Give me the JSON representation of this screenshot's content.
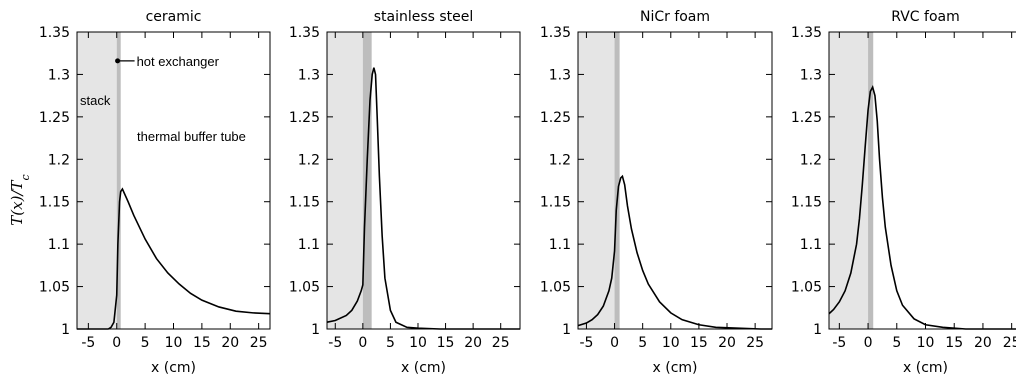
{
  "figure": {
    "ylabel": "T(x)/T",
    "ylabel_sub": "c"
  },
  "chart_data": [
    {
      "type": "line",
      "title": "ceramic",
      "xlabel": "x (cm)",
      "xlim": [
        -7,
        27
      ],
      "ylim": [
        1,
        1.35
      ],
      "xticks": [
        -5,
        0,
        5,
        10,
        15,
        20,
        25
      ],
      "yticks": [
        1,
        1.05,
        1.1,
        1.15,
        1.2,
        1.25,
        1.3,
        1.35
      ],
      "ytick_labels": [
        "1",
        "1.05",
        "1.1",
        "1.15",
        "1.2",
        "1.25",
        "1.3",
        "1.35"
      ],
      "regions": [
        {
          "name": "stack",
          "x": [
            -7,
            0
          ],
          "color": "#e5e5e5"
        },
        {
          "name": "hot exchanger",
          "x": [
            0,
            0.7
          ],
          "color": "#bdbdbd"
        }
      ],
      "annotations": {
        "stack": "stack",
        "hot_exchanger": "hot exchanger",
        "tube": "thermal buffer tube"
      },
      "series": [
        {
          "x": [
            -7,
            -3,
            -1.5,
            -1,
            -0.5,
            0,
            0.2,
            0.5,
            0.7,
            1,
            2,
            3,
            5,
            7,
            9,
            11,
            13,
            15,
            18,
            21,
            24,
            27
          ],
          "y": [
            1.0,
            1.0,
            1.0,
            1.002,
            1.008,
            1.04,
            1.1,
            1.15,
            1.162,
            1.165,
            1.15,
            1.134,
            1.106,
            1.083,
            1.066,
            1.053,
            1.042,
            1.034,
            1.026,
            1.021,
            1.019,
            1.018
          ]
        }
      ]
    },
    {
      "type": "line",
      "title": "stainless steel",
      "xlabel": "x (cm)",
      "xlim": [
        -6.5,
        28.5
      ],
      "ylim": [
        1,
        1.35
      ],
      "xticks": [
        -5,
        0,
        5,
        10,
        15,
        20,
        25
      ],
      "yticks": [
        1,
        1.05,
        1.1,
        1.15,
        1.2,
        1.25,
        1.3,
        1.35
      ],
      "ytick_labels": [
        "1",
        "1.05",
        "1.1",
        "1.15",
        "1.2",
        "1.25",
        "1.3",
        "1.35"
      ],
      "regions": [
        {
          "name": "stack",
          "x": [
            -6.5,
            0
          ],
          "color": "#e5e5e5"
        },
        {
          "name": "hot exchanger",
          "x": [
            0,
            1.6
          ],
          "color": "#bdbdbd"
        }
      ],
      "series": [
        {
          "x": [
            -6.5,
            -5,
            -3,
            -2,
            -1,
            -0.3,
            0,
            0.3,
            0.8,
            1.3,
            1.7,
            2.0,
            2.3,
            2.6,
            3.0,
            3.5,
            4,
            5,
            6,
            8,
            10,
            14,
            20,
            28.5
          ],
          "y": [
            1.008,
            1.01,
            1.016,
            1.022,
            1.033,
            1.045,
            1.052,
            1.12,
            1.2,
            1.27,
            1.3,
            1.308,
            1.3,
            1.25,
            1.18,
            1.11,
            1.06,
            1.022,
            1.008,
            1.002,
            1.001,
            1.0,
            1.0,
            1.0
          ]
        }
      ]
    },
    {
      "type": "line",
      "title": "NiCr foam",
      "xlabel": "x (cm)",
      "xlim": [
        -6.5,
        28
      ],
      "ylim": [
        1,
        1.35
      ],
      "xticks": [
        -5,
        0,
        5,
        10,
        15,
        20,
        25
      ],
      "yticks": [
        1,
        1.05,
        1.1,
        1.15,
        1.2,
        1.25,
        1.3,
        1.35
      ],
      "ytick_labels": [
        "1",
        "1.05",
        "1.1",
        "1.15",
        "1.2",
        "1.25",
        "1.3",
        "1.35"
      ],
      "regions": [
        {
          "name": "stack",
          "x": [
            -6.5,
            0
          ],
          "color": "#e5e5e5"
        },
        {
          "name": "hot exchanger",
          "x": [
            0,
            0.9
          ],
          "color": "#bdbdbd"
        }
      ],
      "series": [
        {
          "x": [
            -6.5,
            -5,
            -4,
            -3,
            -2,
            -1,
            -0.5,
            0,
            0.3,
            0.7,
            1.1,
            1.4,
            1.8,
            2.3,
            3,
            4,
            5,
            6,
            8,
            10,
            12,
            15,
            18,
            22,
            26,
            28
          ],
          "y": [
            1.004,
            1.007,
            1.011,
            1.017,
            1.027,
            1.045,
            1.06,
            1.092,
            1.14,
            1.168,
            1.178,
            1.18,
            1.17,
            1.145,
            1.118,
            1.09,
            1.069,
            1.053,
            1.032,
            1.019,
            1.011,
            1.005,
            1.002,
            1.001,
            1.0,
            1.0
          ]
        }
      ]
    },
    {
      "type": "line",
      "title": "RVC foam",
      "xlabel": "x (cm)",
      "xlim": [
        -6.8,
        26.8
      ],
      "ylim": [
        1,
        1.35
      ],
      "xticks": [
        -5,
        0,
        5,
        10,
        15,
        20,
        25
      ],
      "yticks": [
        1,
        1.05,
        1.1,
        1.15,
        1.2,
        1.25,
        1.3,
        1.35
      ],
      "ytick_labels": [
        "1",
        "1.05",
        "1.1",
        "1.15",
        "1.2",
        "1.25",
        "1.3",
        "1.35"
      ],
      "regions": [
        {
          "name": "stack",
          "x": [
            -6.8,
            0
          ],
          "color": "#e5e5e5"
        },
        {
          "name": "hot exchanger",
          "x": [
            0,
            0.9
          ],
          "color": "#bdbdbd"
        }
      ],
      "series": [
        {
          "x": [
            -6.8,
            -6,
            -5,
            -4,
            -3,
            -2,
            -1.5,
            -1,
            -0.5,
            0,
            0.4,
            0.8,
            1.2,
            1.6,
            2,
            2.5,
            3,
            4,
            5,
            6,
            8,
            10,
            13,
            17,
            22,
            26.8
          ],
          "y": [
            1.018,
            1.023,
            1.032,
            1.045,
            1.066,
            1.1,
            1.13,
            1.17,
            1.215,
            1.258,
            1.28,
            1.285,
            1.275,
            1.245,
            1.2,
            1.155,
            1.12,
            1.075,
            1.045,
            1.028,
            1.012,
            1.005,
            1.002,
            1.0,
            1.0,
            1.0
          ]
        }
      ]
    }
  ]
}
